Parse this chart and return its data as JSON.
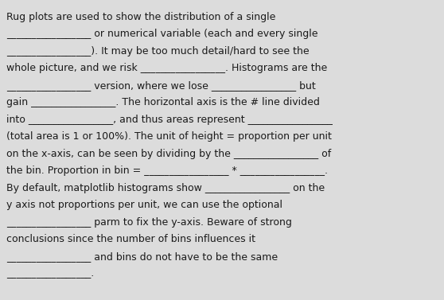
{
  "background_color": "#dcdcdc",
  "text_color": "#1a1a1a",
  "font_size": 9.0,
  "lines": [
    "Rug plots are used to show the distribution of a single",
    "_________________ or numerical variable (each and every single",
    "_________________). It may be too much detail/hard to see the",
    "whole picture, and we risk _________________. Histograms are the",
    "_________________ version, where we lose _________________ but",
    "gain _________________. The horizontal axis is the # line divided",
    "into _________________, and thus areas represent _________________",
    "(total area is 1 or 100%). The unit of height = proportion per unit",
    "on the x-axis, can be seen by dividing by the _________________ of",
    "the bin. Proportion in bin = _________________ * _________________.",
    "By default, matplotlib histograms show _________________ on the",
    "y axis not proportions per unit, we can use the optional",
    "_________________ parm to fix the y-axis. Beware of strong",
    "conclusions since the number of bins influences it",
    "_________________ and bins do not have to be the same",
    "_________________."
  ]
}
